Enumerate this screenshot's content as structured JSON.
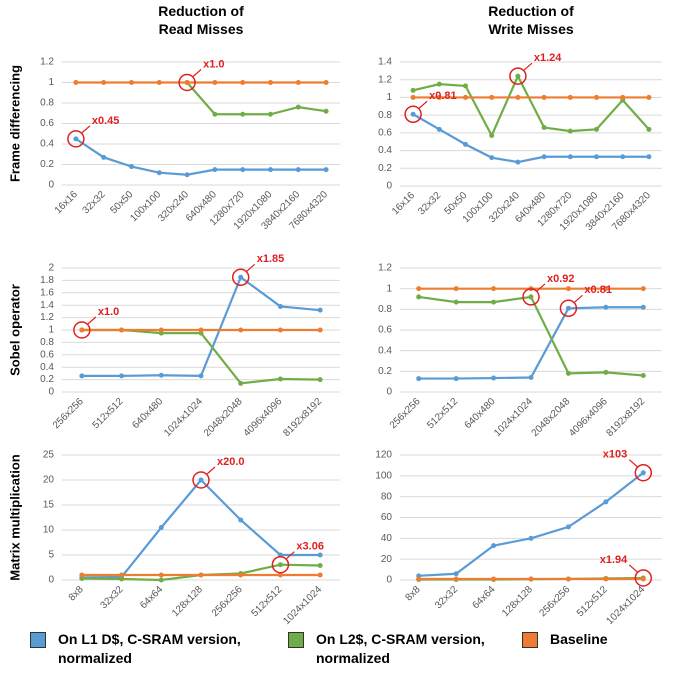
{
  "legend": [
    {
      "name": "On L1 D$, C-SRAM version, normalized",
      "color": "#5b9bd5"
    },
    {
      "name": "On L2$, C-SRAM version, normalized",
      "color": "#70ad47"
    },
    {
      "name": "Baseline",
      "color": "#ed7d31"
    }
  ],
  "chart_data": [
    {
      "type": "line",
      "title": "Reduction of Read Misses",
      "ylabel": "Frame differencing",
      "categories": [
        "16x16",
        "32x32",
        "50x50",
        "100x100",
        "320x240",
        "640x480",
        "1280x720",
        "1920x1080",
        "3840x2160",
        "7680x4320"
      ],
      "ylim": [
        0,
        1.2
      ],
      "yticks": [
        0,
        0.2,
        0.4,
        0.6,
        0.8,
        1,
        1.2
      ],
      "grid": true,
      "series": [
        {
          "color": "#5b9bd5",
          "values": [
            0.45,
            0.27,
            0.18,
            0.12,
            0.1,
            0.15,
            0.15,
            0.15,
            0.15,
            0.15
          ]
        },
        {
          "color": "#70ad47",
          "values": [
            null,
            null,
            null,
            null,
            1.0,
            0.69,
            0.69,
            0.69,
            0.76,
            0.72
          ]
        },
        {
          "color": "#ed7d31",
          "values": [
            1,
            1,
            1,
            1,
            1,
            1,
            1,
            1,
            1,
            1
          ]
        }
      ],
      "annotations": [
        {
          "label": "x0.45",
          "category": "16x16",
          "value": 0.45
        },
        {
          "label": "x1.0",
          "category": "320x240",
          "value": 1.0
        }
      ]
    },
    {
      "type": "line",
      "title": "Reduction of Write Misses",
      "categories": [
        "16x16",
        "32x32",
        "50x50",
        "100x100",
        "320x240",
        "640x480",
        "1280x720",
        "1920x1080",
        "3840x2160",
        "7680x4320"
      ],
      "ylim": [
        0,
        1.4
      ],
      "yticks": [
        0,
        0.2,
        0.4,
        0.6,
        0.8,
        1,
        1.2,
        1.4
      ],
      "grid": true,
      "series": [
        {
          "color": "#5b9bd5",
          "values": [
            0.81,
            0.64,
            0.47,
            0.32,
            0.27,
            0.33,
            0.33,
            0.33,
            0.33,
            0.33
          ]
        },
        {
          "color": "#70ad47",
          "values": [
            1.08,
            1.15,
            1.13,
            0.57,
            1.24,
            0.66,
            0.62,
            0.64,
            0.97,
            0.64
          ]
        },
        {
          "color": "#ed7d31",
          "values": [
            1,
            1,
            1,
            1,
            1,
            1,
            1,
            1,
            1,
            1
          ]
        }
      ],
      "annotations": [
        {
          "label": "x0.81",
          "category": "16x16",
          "value": 0.81
        },
        {
          "label": "x1.24",
          "category": "320x240",
          "value": 1.24
        }
      ]
    },
    {
      "type": "line",
      "ylabel": "Sobel operator",
      "categories": [
        "256x256",
        "512x512",
        "640x480",
        "1024x1024",
        "2048x2048",
        "4096x4096",
        "8192x8192"
      ],
      "ylim": [
        0,
        2
      ],
      "yticks": [
        0,
        0.2,
        0.4,
        0.6,
        0.8,
        1,
        1.2,
        1.4,
        1.6,
        1.8,
        2
      ],
      "grid": true,
      "series": [
        {
          "color": "#5b9bd5",
          "values": [
            0.26,
            0.26,
            0.27,
            0.26,
            1.85,
            1.38,
            1.32
          ]
        },
        {
          "color": "#70ad47",
          "values": [
            1.0,
            1.0,
            0.95,
            0.95,
            0.14,
            0.21,
            0.2
          ]
        },
        {
          "color": "#ed7d31",
          "values": [
            1,
            1,
            1,
            1,
            1,
            1,
            1
          ]
        }
      ],
      "annotations": [
        {
          "label": "x1.0",
          "category": "256x256",
          "value": 1.0
        },
        {
          "label": "x1.85",
          "category": "2048x2048",
          "value": 1.85
        }
      ]
    },
    {
      "type": "line",
      "categories": [
        "256x256",
        "512x512",
        "640x480",
        "1024x1024",
        "2048x2048",
        "4096x4096",
        "8192x8192"
      ],
      "ylim": [
        0,
        1.2
      ],
      "yticks": [
        0,
        0.2,
        0.4,
        0.6,
        0.8,
        1,
        1.2
      ],
      "grid": true,
      "series": [
        {
          "color": "#5b9bd5",
          "values": [
            0.13,
            0.13,
            0.135,
            0.14,
            0.81,
            0.82,
            0.82
          ]
        },
        {
          "color": "#70ad47",
          "values": [
            0.92,
            0.87,
            0.87,
            0.92,
            0.18,
            0.19,
            0.16
          ]
        },
        {
          "color": "#ed7d31",
          "values": [
            1,
            1,
            1,
            1,
            1,
            1,
            1
          ]
        }
      ],
      "annotations": [
        {
          "label": "x0.92",
          "category": "1024x1024",
          "value": 0.92
        },
        {
          "label": "x0.81",
          "category": "2048x2048",
          "value": 0.81
        }
      ]
    },
    {
      "type": "line",
      "ylabel": "Matrix multiplication",
      "categories": [
        "8x8",
        "32x32",
        "64x64",
        "128x128",
        "256x256",
        "512x512",
        "1024x1024"
      ],
      "ylim": [
        0,
        25
      ],
      "yticks": [
        0,
        5,
        10,
        15,
        20,
        25
      ],
      "grid": true,
      "series": [
        {
          "color": "#5b9bd5",
          "values": [
            0.5,
            0.6,
            10.5,
            20,
            12,
            5,
            5
          ]
        },
        {
          "color": "#70ad47",
          "values": [
            0.3,
            0.2,
            0,
            1,
            1.3,
            3.06,
            2.9
          ]
        },
        {
          "color": "#ed7d31",
          "values": [
            1,
            1,
            1,
            1,
            1,
            1,
            1
          ]
        }
      ],
      "annotations": [
        {
          "label": "x20.0",
          "category": "128x128",
          "value": 20.0
        },
        {
          "label": "x3.06",
          "category": "512x512",
          "value": 3.06
        }
      ]
    },
    {
      "type": "line",
      "categories": [
        "8x8",
        "32x32",
        "64x64",
        "128x128",
        "256x256",
        "512x512",
        "1024x1024"
      ],
      "ylim": [
        0,
        120
      ],
      "yticks": [
        0,
        20,
        40,
        60,
        80,
        100,
        120
      ],
      "grid": true,
      "series": [
        {
          "color": "#5b9bd5",
          "values": [
            4,
            6,
            33,
            40,
            51,
            75,
            103
          ]
        },
        {
          "color": "#70ad47",
          "values": [
            0.5,
            0.5,
            0.5,
            0.8,
            1,
            1.5,
            1.94
          ]
        },
        {
          "color": "#ed7d31",
          "values": [
            1,
            1,
            1,
            1,
            1,
            1,
            1
          ]
        }
      ],
      "annotations": [
        {
          "label": "x103",
          "category": "1024x1024",
          "value": 103
        },
        {
          "label": "x1.94",
          "category": "1024x1024",
          "value": 1.94
        }
      ]
    }
  ]
}
